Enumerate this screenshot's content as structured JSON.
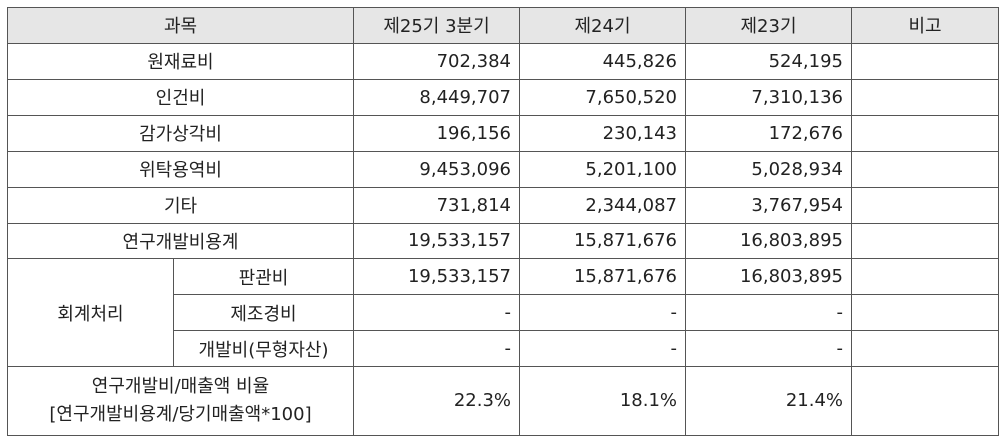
{
  "header": {
    "subject": "과목",
    "p25": "제25기 3분기",
    "p24": "제24기",
    "p23": "제23기",
    "note": "비고"
  },
  "rows": [
    {
      "label": "원재료비",
      "v25": "702,384",
      "v24": "445,826",
      "v23": "524,195"
    },
    {
      "label": "인건비",
      "v25": "8,449,707",
      "v24": "7,650,520",
      "v23": "7,310,136"
    },
    {
      "label": "감가상각비",
      "v25": "196,156",
      "v24": "230,143",
      "v23": "172,676"
    },
    {
      "label": "위탁용역비",
      "v25": "9,453,096",
      "v24": "5,201,100",
      "v23": "5,028,934"
    },
    {
      "label": "기타",
      "v25": "731,814",
      "v24": "2,344,087",
      "v23": "3,767,954"
    },
    {
      "label": "연구개발비용계",
      "v25": "19,533,157",
      "v24": "15,871,676",
      "v23": "16,803,895"
    }
  ],
  "accounting": {
    "label": "회계처리",
    "rows": [
      {
        "label": "판관비",
        "v25": "19,533,157",
        "v24": "15,871,676",
        "v23": "16,803,895"
      },
      {
        "label": "제조경비",
        "v25": "-",
        "v24": "-",
        "v23": "-"
      },
      {
        "label": "개발비(무형자산)",
        "v25": "-",
        "v24": "-",
        "v23": "-"
      }
    ]
  },
  "ratio": {
    "label_line1": "연구개발비/매출액 비율",
    "label_line2": "[연구개발비용계/당기매출액*100]",
    "v25": "22.3%",
    "v24": "18.1%",
    "v23": "21.4%"
  }
}
